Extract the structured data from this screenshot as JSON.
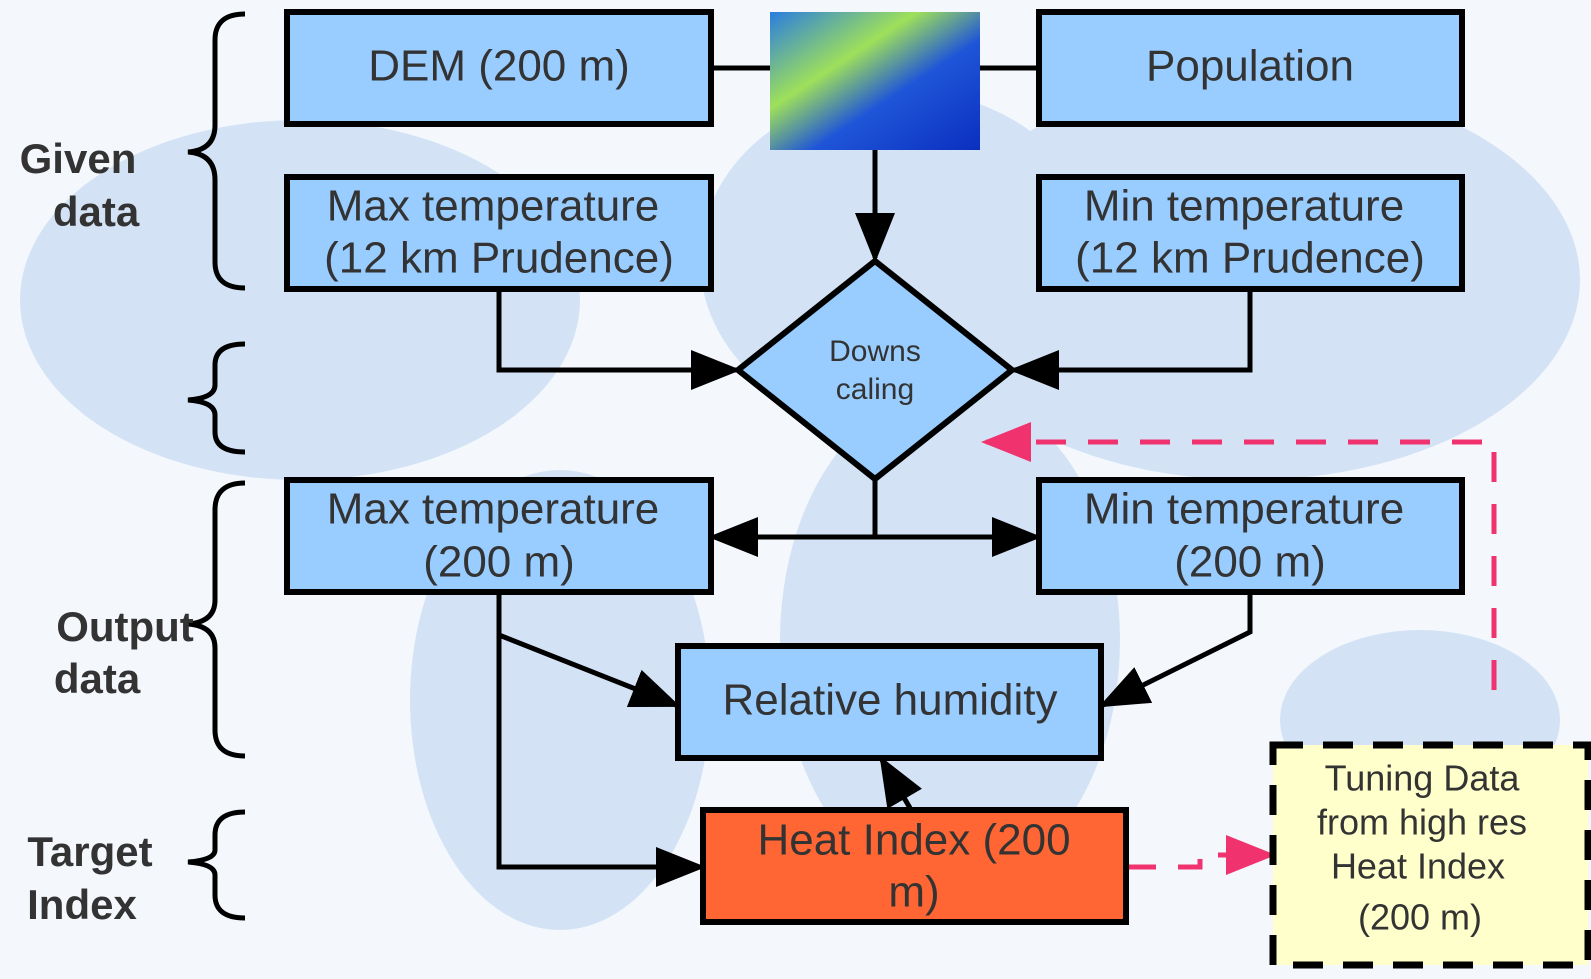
{
  "side_labels": [
    {
      "lines": [
        "Given",
        "data"
      ]
    },
    {
      "lines": [
        "Output",
        "data"
      ]
    },
    {
      "lines": [
        "Target",
        "Index"
      ]
    }
  ],
  "nodes": [
    {
      "lines": [
        "DEM (200 m)"
      ]
    },
    {
      "lines": [
        "Population"
      ]
    },
    {
      "lines": [
        "Max temperature",
        "(12 km Prudence)"
      ]
    },
    {
      "lines": [
        "Min temperature",
        "(12 km Prudence)"
      ]
    },
    {
      "lines": [
        "Downs",
        "caling"
      ]
    },
    {
      "lines": [
        "Max temperature",
        "(200 m)"
      ]
    },
    {
      "lines": [
        "Min temperature",
        "(200 m)"
      ]
    },
    {
      "lines": [
        "Relative humidity"
      ]
    },
    {
      "lines": [
        "Heat Index (200",
        "m)"
      ]
    },
    {
      "lines": [
        "Tuning Data",
        "from high res",
        "Heat Index",
        "(200 m)"
      ]
    }
  ]
}
